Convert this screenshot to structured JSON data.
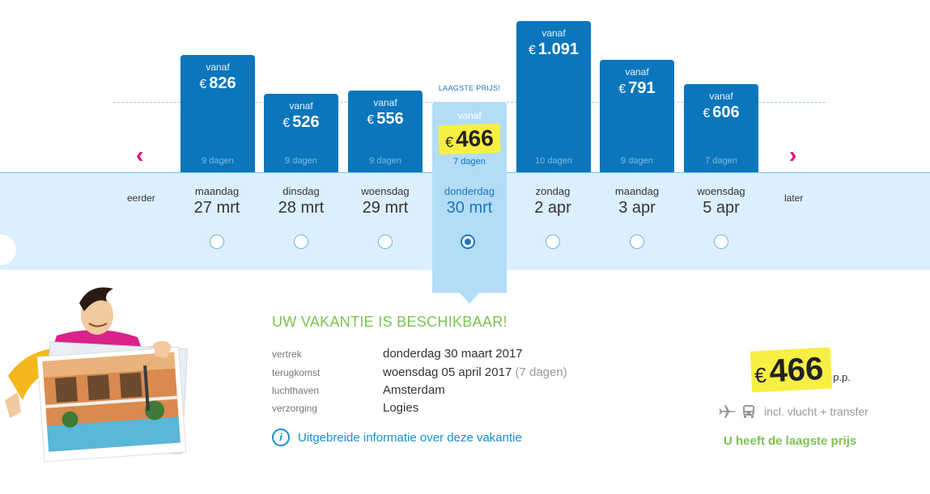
{
  "nav": {
    "prev_label": "eerder",
    "next_label": "later",
    "prev_icon": "chevron-left-icon",
    "next_icon": "chevron-right-icon"
  },
  "lowest_tag": "LAAGSTE PRIJS!",
  "options": [
    {
      "vanaf": "vanaf",
      "currency": "€",
      "price": "826",
      "days": "9 dagen",
      "weekday": "maandag",
      "date": "27 mrt",
      "selected": false
    },
    {
      "vanaf": "vanaf",
      "currency": "€",
      "price": "526",
      "days": "9 dagen",
      "weekday": "dinsdag",
      "date": "28 mrt",
      "selected": false
    },
    {
      "vanaf": "vanaf",
      "currency": "€",
      "price": "556",
      "days": "9 dagen",
      "weekday": "woensdag",
      "date": "29 mrt",
      "selected": false
    },
    {
      "vanaf": "vanaf",
      "currency": "€",
      "price": "466",
      "days": "7 dagen",
      "weekday": "donderdag",
      "date": "30 mrt",
      "selected": true
    },
    {
      "vanaf": "vanaf",
      "currency": "€",
      "price": "1.091",
      "days": "10 dagen",
      "weekday": "zondag",
      "date": "2 apr",
      "selected": false
    },
    {
      "vanaf": "vanaf",
      "currency": "€",
      "price": "791",
      "days": "9 dagen",
      "weekday": "maandag",
      "date": "3 apr",
      "selected": false
    },
    {
      "vanaf": "vanaf",
      "currency": "€",
      "price": "606",
      "days": "7 dagen",
      "weekday": "woensdag",
      "date": "5 apr",
      "selected": false
    }
  ],
  "details": {
    "title": "UW VAKANTIE IS BESCHIKBAAR!",
    "rows": [
      {
        "label": "vertrek",
        "value": "donderdag 30 maart 2017",
        "extra": ""
      },
      {
        "label": "terugkomst",
        "value": "woensdag 05 april 2017",
        "extra": "(7 dagen)"
      },
      {
        "label": "luchthaven",
        "value": "Amsterdam",
        "extra": ""
      },
      {
        "label": "verzorging",
        "value": "Logies",
        "extra": ""
      }
    ],
    "info_link": "Uitgebreide informatie over deze vakantie",
    "info_icon_glyph": "i"
  },
  "summary": {
    "currency": "€",
    "price": "466",
    "pp": "p.p.",
    "transport": "incl. vlucht + transfer",
    "lowest": "U heeft de laagste prijs"
  },
  "colors": {
    "bar": "#0b76bc",
    "selected": "#b3dcf7",
    "highlight": "#f7ef43",
    "accent_green": "#7cc254",
    "nav_arrow": "#e5007d"
  }
}
